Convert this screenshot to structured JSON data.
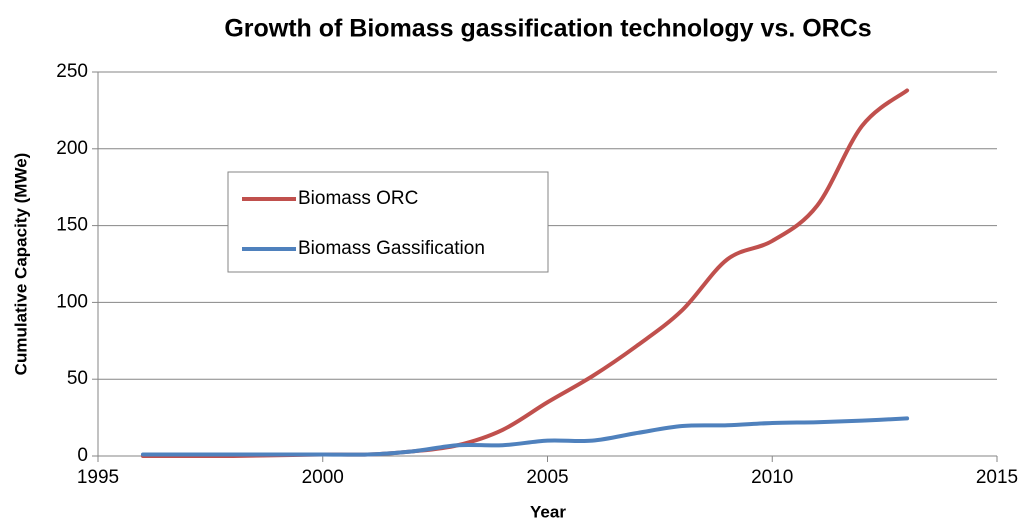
{
  "chart_data": {
    "type": "line",
    "title": "Growth of Biomass gassification technology vs. ORCs",
    "x_label": "Year",
    "y_label": "Cumulative Capacity (MWe)",
    "x": [
      1996,
      1997,
      1998,
      1999,
      2000,
      2001,
      2002,
      2003,
      2004,
      2005,
      2006,
      2007,
      2008,
      2009,
      2010,
      2011,
      2012,
      2013
    ],
    "series": [
      {
        "name": "Biomass ORC",
        "color": "#c0504d",
        "values": [
          0,
          0,
          0,
          0.5,
          1,
          1,
          3,
          7,
          17,
          35,
          52,
          72,
          95,
          128,
          140,
          163,
          215,
          238
        ]
      },
      {
        "name": "Biomass Gassification",
        "color": "#4f81bd",
        "values": [
          1,
          1,
          1,
          1,
          1,
          1,
          3,
          7,
          7,
          10,
          10,
          15,
          19.5,
          20,
          21.5,
          22,
          23,
          24.5
        ]
      }
    ],
    "xlim": [
      1995,
      2015
    ],
    "xticks": [
      1995,
      2000,
      2005,
      2010,
      2015
    ],
    "ylim": [
      0,
      250
    ],
    "yticks": [
      0,
      50,
      100,
      150,
      200,
      250
    ],
    "grid": true,
    "legend_position": "upper left"
  }
}
